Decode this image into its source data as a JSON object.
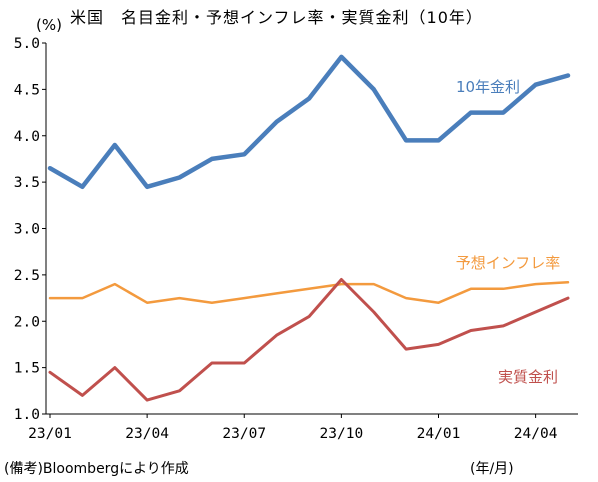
{
  "chart_data": {
    "type": "line",
    "title": "米国　名目金利・予想インフレ率・実質金利（10年）",
    "ylabel": "(%)",
    "xlabel": "",
    "ylim": [
      1.0,
      5.0
    ],
    "yticks": [
      "1.0",
      "1.5",
      "2.0",
      "2.5",
      "3.0",
      "3.5",
      "4.0",
      "4.5",
      "5.0"
    ],
    "xticks": [
      "23/01",
      "23/04",
      "23/07",
      "23/10",
      "24/01",
      "24/04"
    ],
    "x": [
      "23/01",
      "23/02",
      "23/03",
      "23/04",
      "23/05",
      "23/06",
      "23/07",
      "23/08",
      "23/09",
      "23/10",
      "23/11",
      "23/12",
      "24/01",
      "24/02",
      "24/03",
      "24/04",
      "24/05"
    ],
    "series": [
      {
        "name": "10年金利",
        "color": "#4a7ebb",
        "values": [
          3.65,
          3.45,
          3.9,
          3.45,
          3.55,
          3.75,
          3.8,
          4.15,
          4.4,
          4.85,
          4.5,
          3.95,
          3.95,
          4.25,
          4.25,
          4.55,
          4.65
        ]
      },
      {
        "name": "予想インフレ率",
        "color": "#f39a3e",
        "values": [
          2.25,
          2.25,
          2.4,
          2.2,
          2.25,
          2.2,
          2.25,
          2.3,
          2.35,
          2.4,
          2.4,
          2.25,
          2.2,
          2.35,
          2.35,
          2.4,
          2.42
        ]
      },
      {
        "name": "実質金利",
        "color": "#c0504d",
        "values": [
          1.45,
          1.2,
          1.5,
          1.15,
          1.25,
          1.55,
          1.55,
          1.85,
          2.05,
          2.45,
          2.1,
          1.7,
          1.75,
          1.9,
          1.95,
          2.1,
          2.25
        ]
      }
    ],
    "grid": false,
    "legend": "inline labels near series"
  },
  "page": {
    "title": "米国　名目金利・予想インフレ率・実質金利（10年）",
    "unit": "(%)",
    "note": "(備考)Bloombergにより作成",
    "x_unit": "(年/月)"
  }
}
